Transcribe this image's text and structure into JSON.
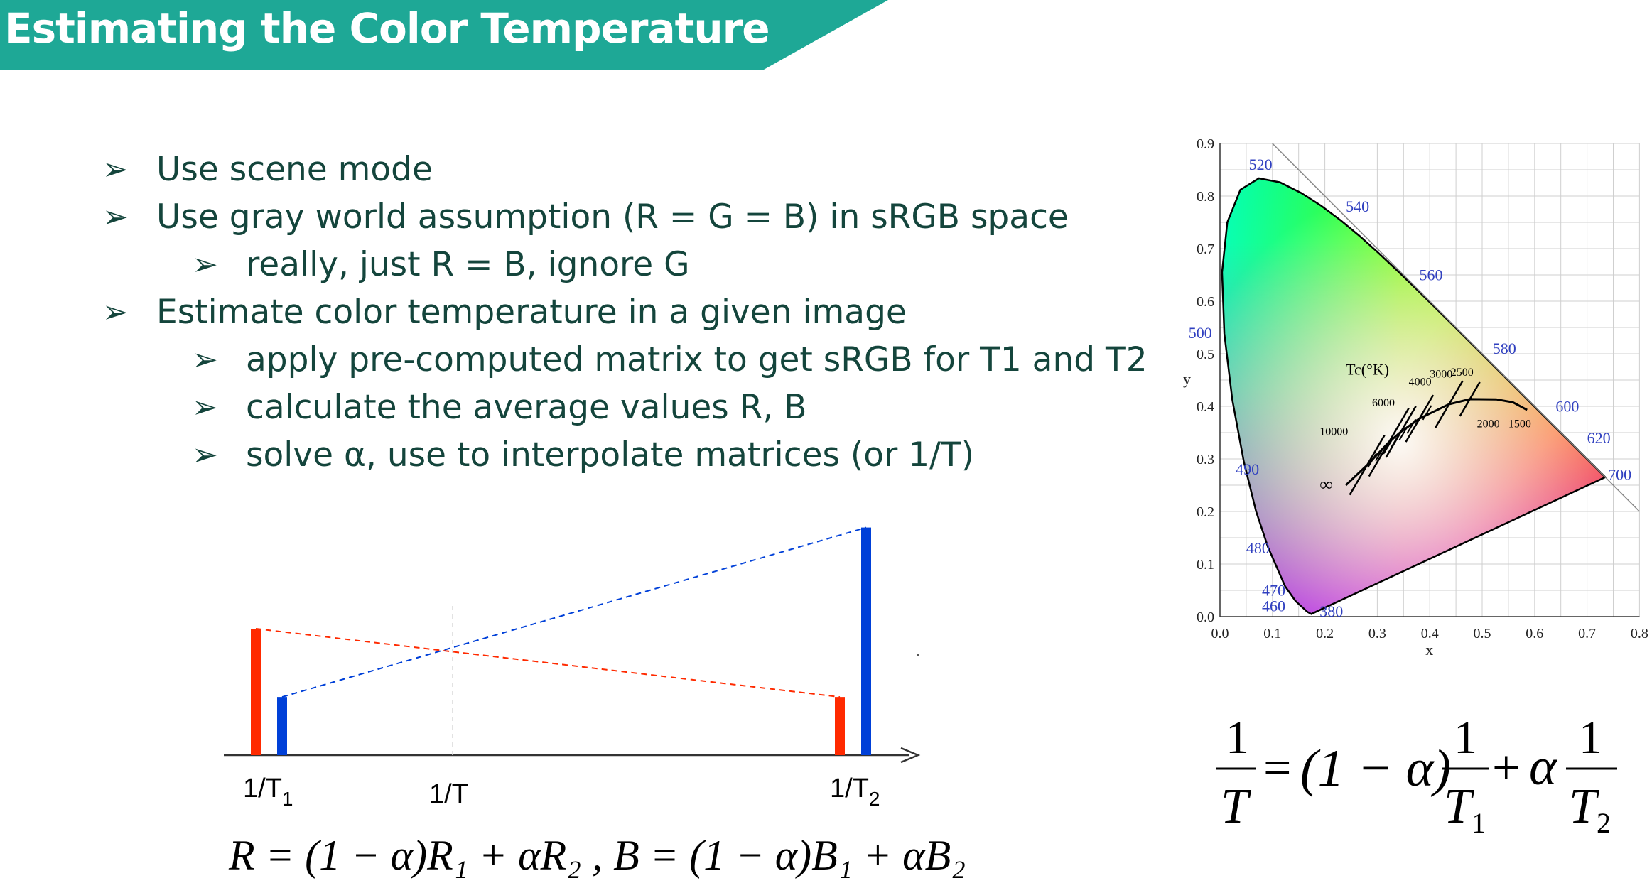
{
  "header": {
    "title": "Estimating the Color Temperature"
  },
  "bullets": [
    {
      "level": 1,
      "text": "Use scene mode"
    },
    {
      "level": 1,
      "text": "Use gray world assumption (R = G = B) in sRGB space"
    },
    {
      "level": 2,
      "text": "really, just R = B, ignore G"
    },
    {
      "level": 1,
      "text": "Estimate color temperature in a given image"
    },
    {
      "level": 2,
      "text": "apply pre-computed matrix to get sRGB for T1 and T2"
    },
    {
      "level": 2,
      "text": "calculate the average values R, B"
    },
    {
      "level": 2,
      "text": "solve α, use to interpolate matrices (or 1/T)"
    }
  ],
  "interp_diagram": {
    "labels": {
      "t1": "1/T",
      "t1_sub": "1",
      "t": "1/T",
      "t2": "1/T",
      "t2_sub": "2"
    },
    "colors": {
      "red": "#ff2a00",
      "blue": "#0040d8"
    },
    "bars": {
      "red_at_T1": 1.0,
      "blue_at_T1": 0.46,
      "red_at_T2": 0.46,
      "blue_at_T2": 1.8
    }
  },
  "equations": {
    "rgb_interp": "R = (1 − α)R₁ + αR₂ , B = (1 − α)B₁ + αB₂",
    "inverse_temp": {
      "lhs_num": "1",
      "lhs_den": "T",
      "equals": "=",
      "coef": "(1 − α)",
      "t1_num": "1",
      "t1_den": "T",
      "t1_sub": "1",
      "plus": "+",
      "alpha": "α",
      "t2_num": "1",
      "t2_den": "T",
      "t2_sub": "2"
    }
  },
  "chromaticity": {
    "x_axis_label": "x",
    "y_axis_label": "y",
    "x_ticks": [
      "0.0",
      "0.1",
      "0.2",
      "0.3",
      "0.4",
      "0.5",
      "0.6",
      "0.7",
      "0.8"
    ],
    "y_ticks": [
      "0.0",
      "0.1",
      "0.2",
      "0.3",
      "0.4",
      "0.5",
      "0.6",
      "0.7",
      "0.8",
      "0.9"
    ],
    "wavelengths": [
      "380",
      "460",
      "470",
      "480",
      "490",
      "500",
      "520",
      "540",
      "560",
      "580",
      "600",
      "620",
      "700"
    ],
    "locus_title": "Tc(°K)",
    "locus_labels": [
      "10000",
      "6000",
      "4000",
      "3000",
      "2500",
      "2000",
      "1500",
      "∞"
    ]
  }
}
